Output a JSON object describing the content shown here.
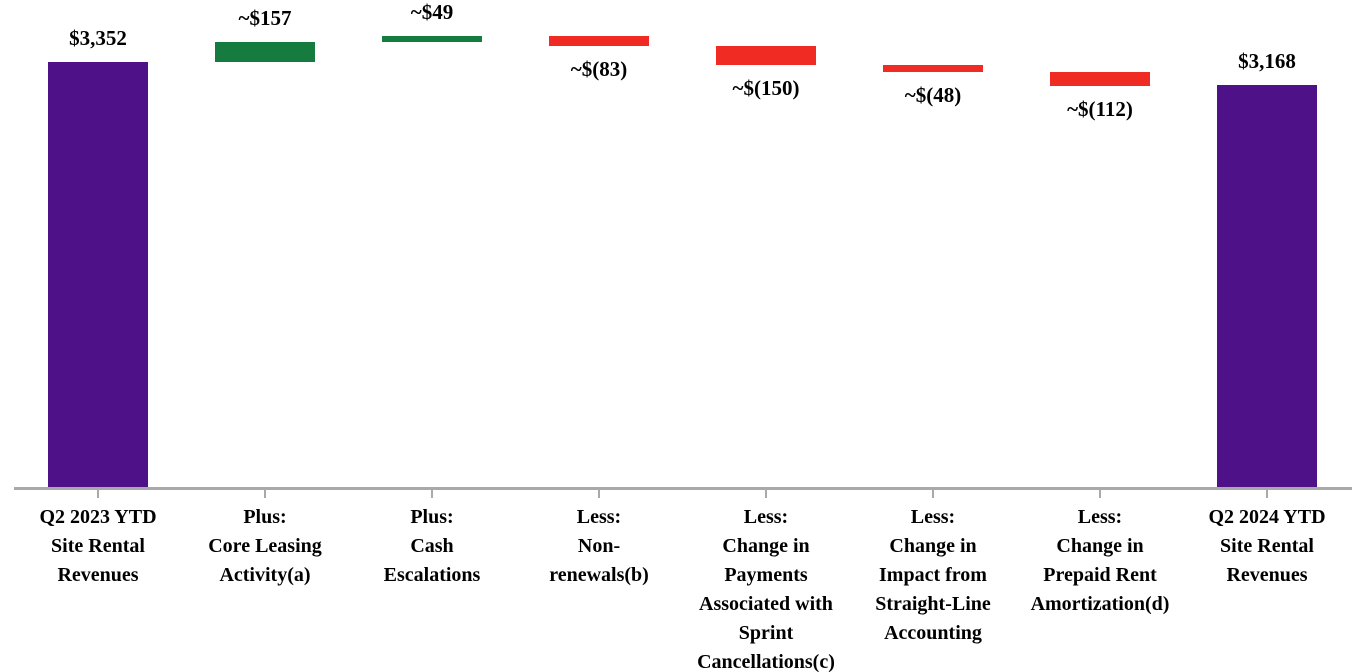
{
  "chart_data": {
    "type": "waterfall",
    "title": "",
    "xlabel": "",
    "ylabel": "",
    "unit": "$ (USD, approximate, millions)",
    "grid": false,
    "legend": "none",
    "axis_baseline_value": 0,
    "colors": {
      "total": "#4E1187",
      "increase": "#167B3E",
      "decrease": "#EF2B23",
      "axis": "#A9A9A9",
      "label_text": "#000000",
      "background": "#FFFFFF"
    },
    "categories": [
      "Q2 2023 YTD Site Rental Revenues",
      "Plus: Core Leasing Activity(a)",
      "Plus: Cash Escalations",
      "Less: Non-renewals(b)",
      "Less: Change in Payments Associated with Sprint Cancellations(c)",
      "Less: Change in Impact from Straight-Line Accounting",
      "Less: Change in Prepaid Rent Amortization(d)",
      "Q2 2024 YTD Site Rental Revenues"
    ],
    "bars": [
      {
        "label_lines": [
          "Q2 2023 YTD",
          "Site Rental",
          "Revenues"
        ],
        "value": 3352,
        "display": "$3,352",
        "kind": "total",
        "label_side": "above"
      },
      {
        "label_lines": [
          "Plus:",
          "Core Leasing",
          "Activity(a)"
        ],
        "value": 157,
        "display": "~$157",
        "kind": "increase",
        "label_side": "above"
      },
      {
        "label_lines": [
          "Plus:",
          "Cash",
          "Escalations"
        ],
        "value": 49,
        "display": "~$49",
        "kind": "increase",
        "label_side": "above"
      },
      {
        "label_lines": [
          "Less:",
          "Non-",
          "renewals(b)"
        ],
        "value": -83,
        "display": "~$(83)",
        "kind": "decrease",
        "label_side": "below"
      },
      {
        "label_lines": [
          "Less:",
          "Change in",
          "Payments",
          "Associated with",
          "Sprint",
          "Cancellations(c)"
        ],
        "value": -150,
        "display": "~$(150)",
        "kind": "decrease",
        "label_side": "below"
      },
      {
        "label_lines": [
          "Less:",
          "Change in",
          "Impact from",
          "Straight-Line",
          "Accounting"
        ],
        "value": -48,
        "display": "~$(48)",
        "kind": "decrease",
        "label_side": "below"
      },
      {
        "label_lines": [
          "Less:",
          "Change in",
          "Prepaid Rent",
          "Amortization(d)"
        ],
        "value": -112,
        "display": "~$(112)",
        "kind": "decrease",
        "label_side": "below"
      },
      {
        "label_lines": [
          "Q2 2024 YTD",
          "Site Rental",
          "Revenues"
        ],
        "value": 3168,
        "display": "$3,168",
        "kind": "total",
        "label_side": "above"
      }
    ]
  }
}
